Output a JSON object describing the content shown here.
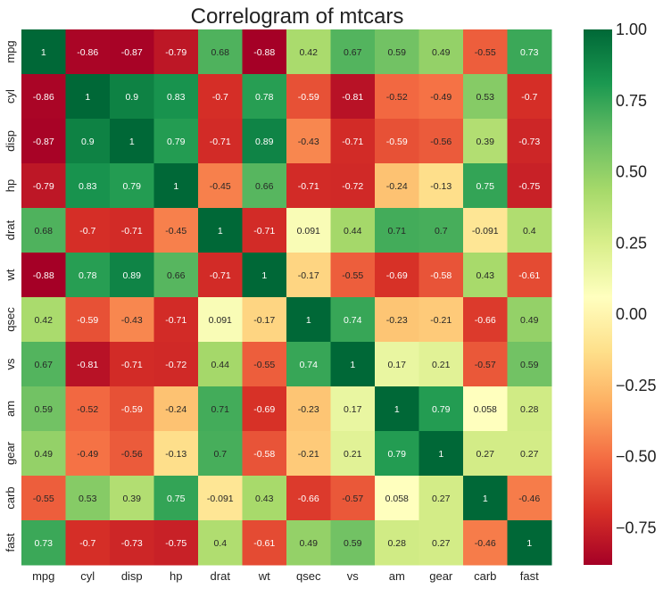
{
  "chart_data": {
    "type": "heatmap",
    "title": "Correlogram of mtcars",
    "variables": [
      "mpg",
      "cyl",
      "disp",
      "hp",
      "drat",
      "wt",
      "qsec",
      "vs",
      "am",
      "gear",
      "carb",
      "fast"
    ],
    "matrix": [
      [
        1,
        -0.86,
        -0.87,
        -0.79,
        0.68,
        -0.88,
        0.42,
        0.67,
        0.59,
        0.49,
        -0.55,
        0.73
      ],
      [
        -0.86,
        1,
        0.9,
        0.83,
        -0.7,
        0.78,
        -0.59,
        -0.81,
        -0.52,
        -0.49,
        0.53,
        -0.7
      ],
      [
        -0.87,
        0.9,
        1,
        0.79,
        -0.71,
        0.89,
        -0.43,
        -0.71,
        -0.59,
        -0.56,
        0.39,
        -0.73
      ],
      [
        -0.79,
        0.83,
        0.79,
        1,
        -0.45,
        0.66,
        -0.71,
        -0.72,
        -0.24,
        -0.13,
        0.75,
        -0.75
      ],
      [
        0.68,
        -0.7,
        -0.71,
        -0.45,
        1,
        -0.71,
        0.091,
        0.44,
        0.71,
        0.7,
        -0.091,
        0.4
      ],
      [
        -0.88,
        0.78,
        0.89,
        0.66,
        -0.71,
        1,
        -0.17,
        -0.55,
        -0.69,
        -0.58,
        0.43,
        -0.61
      ],
      [
        0.42,
        -0.59,
        -0.43,
        -0.71,
        0.091,
        -0.17,
        1,
        0.74,
        -0.23,
        -0.21,
        -0.66,
        0.49
      ],
      [
        0.67,
        -0.81,
        -0.71,
        -0.72,
        0.44,
        -0.55,
        0.74,
        1,
        0.17,
        0.21,
        -0.57,
        0.59
      ],
      [
        0.59,
        -0.52,
        -0.59,
        -0.24,
        0.71,
        -0.69,
        -0.23,
        0.17,
        1,
        0.79,
        0.058,
        0.28
      ],
      [
        0.49,
        -0.49,
        -0.56,
        -0.13,
        0.7,
        -0.58,
        -0.21,
        0.21,
        0.79,
        1,
        0.27,
        0.27
      ],
      [
        -0.55,
        0.53,
        0.39,
        0.75,
        -0.091,
        0.43,
        -0.66,
        -0.57,
        0.058,
        0.27,
        1,
        -0.46
      ],
      [
        0.73,
        -0.7,
        -0.73,
        -0.75,
        0.4,
        -0.61,
        0.49,
        0.59,
        0.28,
        0.27,
        -0.46,
        1
      ]
    ],
    "colorbar": {
      "colormap": "RdYlGn",
      "vmin": -0.88,
      "vmax": 1.0,
      "ticks": [
        1.0,
        0.75,
        0.5,
        0.25,
        0.0,
        -0.25,
        -0.5,
        -0.75
      ],
      "tick_labels": [
        "1.00",
        "0.75",
        "0.50",
        "0.25",
        "0.00",
        "−0.25",
        "−0.50",
        "−0.75"
      ]
    },
    "xlabel": "",
    "ylabel": "",
    "grid": false
  }
}
